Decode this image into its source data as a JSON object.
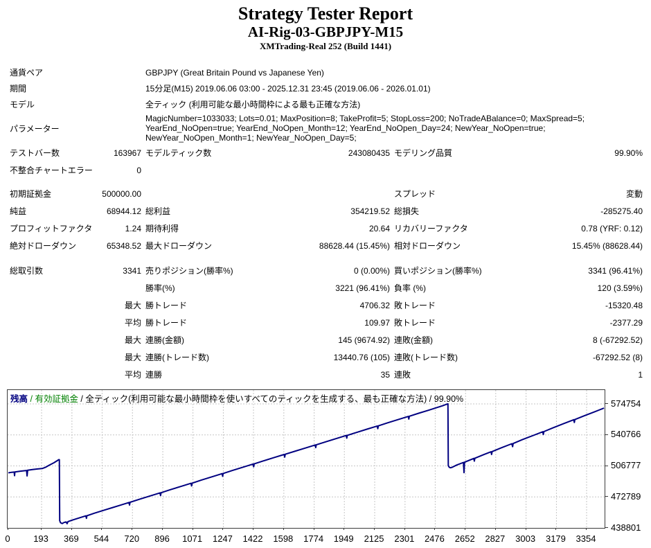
{
  "header": {
    "title": "Strategy Tester Report",
    "subtitle": "AI-Rig-03-GBPJPY-M15",
    "build": "XMTrading-Real 252 (Build 1441)"
  },
  "info_rows": [
    {
      "label": "通貨ペア",
      "value": "GBPJPY (Great Britain Pound vs Japanese Yen)",
      "wrap": false
    },
    {
      "label": "期間",
      "value": "15分足(M15) 2019.06.06 03:00 - 2025.12.31 23:45 (2019.06.06 - 2026.01.01)",
      "wrap": false
    },
    {
      "label": "モデル",
      "value": "全ティック (利用可能な最小時間枠による最も正確な方法)",
      "wrap": false
    },
    {
      "label": "パラメーター",
      "value": "MagicNumber=1033033; Lots=0.01; MaxPosition=8; TakeProfit=5; StopLoss=200; NoTradeABalance=0; MaxSpread=5; YearEnd_NoOpen=true; YearEnd_NoOpen_Month=12; YearEnd_NoOpen_Day=24; NewYear_NoOpen=true; NewYear_NoOpen_Month=1; NewYear_NoOpen_Day=5;",
      "wrap": true
    }
  ],
  "stat_rows": [
    {
      "cells": [
        "テストバー数",
        "163967",
        "モデルティック数",
        "243080435",
        "モデリング品質",
        "99.90%"
      ]
    },
    {
      "cells": [
        "不整合チャートエラー",
        "0",
        "",
        "",
        "",
        ""
      ]
    },
    {
      "spacer": "spacer8"
    },
    {
      "cells": [
        "初期証拠金",
        "500000.00",
        "",
        "",
        "スプレッド",
        "変動"
      ]
    },
    {
      "cells": [
        "純益",
        "68944.12",
        "総利益",
        "354219.52",
        "総損失",
        "-285275.40"
      ]
    },
    {
      "cells": [
        "プロフィットファクタ",
        "1.24",
        "期待利得",
        "20.64",
        "リカバリーファクタ",
        "0.78 (YRF: 0.12)"
      ]
    },
    {
      "cells": [
        "絶対ドローダウン",
        "65348.52",
        "最大ドローダウン",
        "88628.44 (15.45%)",
        "相対ドローダウン",
        "15.45% (88628.44)"
      ]
    },
    {
      "spacer": "spacer11"
    },
    {
      "cells": [
        "総取引数",
        "3341",
        "売りポジション(勝率%)",
        "0 (0.00%)",
        "買いポジション(勝率%)",
        "3341 (96.41%)"
      ]
    },
    {
      "cells": [
        "",
        "",
        "勝率(%)",
        "3221 (96.41%)",
        "負率 (%)",
        "120 (3.59%)"
      ]
    },
    {
      "cells": [
        "",
        "最大",
        "勝トレード",
        "4706.32",
        "敗トレード",
        "-15320.48"
      ]
    },
    {
      "cells": [
        "",
        "平均",
        "勝トレード",
        "109.97",
        "敗トレード",
        "-2377.29"
      ]
    },
    {
      "cells": [
        "",
        "最大",
        "連勝(金額)",
        "145 (9674.92)",
        "連敗(金額)",
        "8 (-67292.52)"
      ]
    },
    {
      "cells": [
        "",
        "最大",
        "連勝(トレード数)",
        "13440.76 (105)",
        "連敗(トレード数)",
        "-67292.52 (8)"
      ]
    },
    {
      "cells": [
        "",
        "平均",
        "連勝",
        "35",
        "連敗",
        "1"
      ]
    }
  ],
  "chart_data": {
    "type": "line",
    "title": "",
    "xlabel": "trade number",
    "ylabel": "balance",
    "legend": {
      "balance_label": "残高",
      "sep1": " / ",
      "equity_label": "有効証拠金",
      "sep2": " / ",
      "model_label": "全ティック(利用可能な最小時間枠を使いすべてのティックを生成する、最も正確な方法)",
      "sep3": " / ",
      "quality": "99.90%"
    },
    "colors": {
      "balance_line": "#000080",
      "equity_label_color": "#008000",
      "grid": "#c6c6c6",
      "axis_text": "#000000",
      "border": "#3a3a3a"
    },
    "y_ticks": [
      574754,
      540766,
      506777,
      472789,
      438801
    ],
    "x_ticks": [
      0,
      193,
      369,
      544,
      720,
      896,
      1071,
      1247,
      1422,
      1598,
      1774,
      1949,
      2125,
      2301,
      2476,
      2652,
      2827,
      3003,
      3179,
      3354
    ],
    "ylim": [
      438801,
      589900
    ],
    "xlim": [
      0,
      3460
    ],
    "grid": "dotted",
    "legend_position": "top-left-inside",
    "series": [
      {
        "name": "残高",
        "points": [
          [
            0,
            499200
          ],
          [
            20,
            499800
          ],
          [
            34,
            500000
          ],
          [
            36,
            496100
          ],
          [
            38,
            500100
          ],
          [
            70,
            501000
          ],
          [
            106,
            501800
          ],
          [
            109,
            495800
          ],
          [
            112,
            502000
          ],
          [
            140,
            502800
          ],
          [
            170,
            503400
          ],
          [
            197,
            503900
          ],
          [
            215,
            505200
          ],
          [
            237,
            507500
          ],
          [
            265,
            510300
          ],
          [
            293,
            513600
          ],
          [
            296,
            513600
          ],
          [
            298,
            446800
          ],
          [
            303,
            444500
          ],
          [
            313,
            443600
          ],
          [
            323,
            444700
          ],
          [
            335,
            445300
          ],
          [
            341,
            443400
          ],
          [
            346,
            445700
          ],
          [
            370,
            447300
          ],
          [
            400,
            449100
          ],
          [
            450,
            452000
          ],
          [
            453,
            449300
          ],
          [
            456,
            452200
          ],
          [
            500,
            455000
          ],
          [
            560,
            458500
          ],
          [
            600,
            460800
          ],
          [
            650,
            463700
          ],
          [
            700,
            466700
          ],
          [
            703,
            463900
          ],
          [
            706,
            466900
          ],
          [
            760,
            470200
          ],
          [
            820,
            473700
          ],
          [
            880,
            477200
          ],
          [
            883,
            474300
          ],
          [
            886,
            477400
          ],
          [
            940,
            480700
          ],
          [
            1000,
            484200
          ],
          [
            1060,
            487700
          ],
          [
            1063,
            484800
          ],
          [
            1066,
            487900
          ],
          [
            1120,
            491300
          ],
          [
            1180,
            494800
          ],
          [
            1240,
            498300
          ],
          [
            1243,
            495400
          ],
          [
            1246,
            498500
          ],
          [
            1300,
            501800
          ],
          [
            1360,
            505300
          ],
          [
            1420,
            508800
          ],
          [
            1423,
            505900
          ],
          [
            1426,
            509000
          ],
          [
            1480,
            512300
          ],
          [
            1540,
            515800
          ],
          [
            1600,
            519300
          ],
          [
            1603,
            516400
          ],
          [
            1606,
            519500
          ],
          [
            1660,
            522700
          ],
          [
            1720,
            526200
          ],
          [
            1780,
            529700
          ],
          [
            1783,
            526800
          ],
          [
            1786,
            529900
          ],
          [
            1840,
            533100
          ],
          [
            1900,
            536600
          ],
          [
            1960,
            540100
          ],
          [
            1963,
            537200
          ],
          [
            1966,
            540300
          ],
          [
            2020,
            543500
          ],
          [
            2080,
            547000
          ],
          [
            2140,
            550500
          ],
          [
            2143,
            547600
          ],
          [
            2146,
            550700
          ],
          [
            2200,
            554000
          ],
          [
            2260,
            557500
          ],
          [
            2320,
            561000
          ],
          [
            2323,
            558100
          ],
          [
            2326,
            561200
          ],
          [
            2380,
            564500
          ],
          [
            2440,
            568000
          ],
          [
            2490,
            571000
          ],
          [
            2520,
            572800
          ],
          [
            2547,
            574750
          ],
          [
            2550,
            574750
          ],
          [
            2552,
            507000
          ],
          [
            2558,
            505200
          ],
          [
            2565,
            504700
          ],
          [
            2575,
            505300
          ],
          [
            2600,
            507700
          ],
          [
            2640,
            510600
          ],
          [
            2643,
            499400
          ],
          [
            2646,
            510800
          ],
          [
            2700,
            515000
          ],
          [
            2703,
            512000
          ],
          [
            2706,
            515200
          ],
          [
            2760,
            519400
          ],
          [
            2800,
            522300
          ],
          [
            2803,
            519300
          ],
          [
            2806,
            522500
          ],
          [
            2860,
            526700
          ],
          [
            2920,
            531100
          ],
          [
            2925,
            527900
          ],
          [
            2928,
            531300
          ],
          [
            2980,
            535500
          ],
          [
            3040,
            539800
          ],
          [
            3100,
            544200
          ],
          [
            3103,
            541200
          ],
          [
            3106,
            544400
          ],
          [
            3160,
            548600
          ],
          [
            3220,
            553000
          ],
          [
            3280,
            557400
          ],
          [
            3283,
            554400
          ],
          [
            3286,
            557600
          ],
          [
            3340,
            561700
          ],
          [
            3400,
            566100
          ],
          [
            3430,
            568300
          ],
          [
            3455,
            570100
          ]
        ]
      }
    ]
  }
}
